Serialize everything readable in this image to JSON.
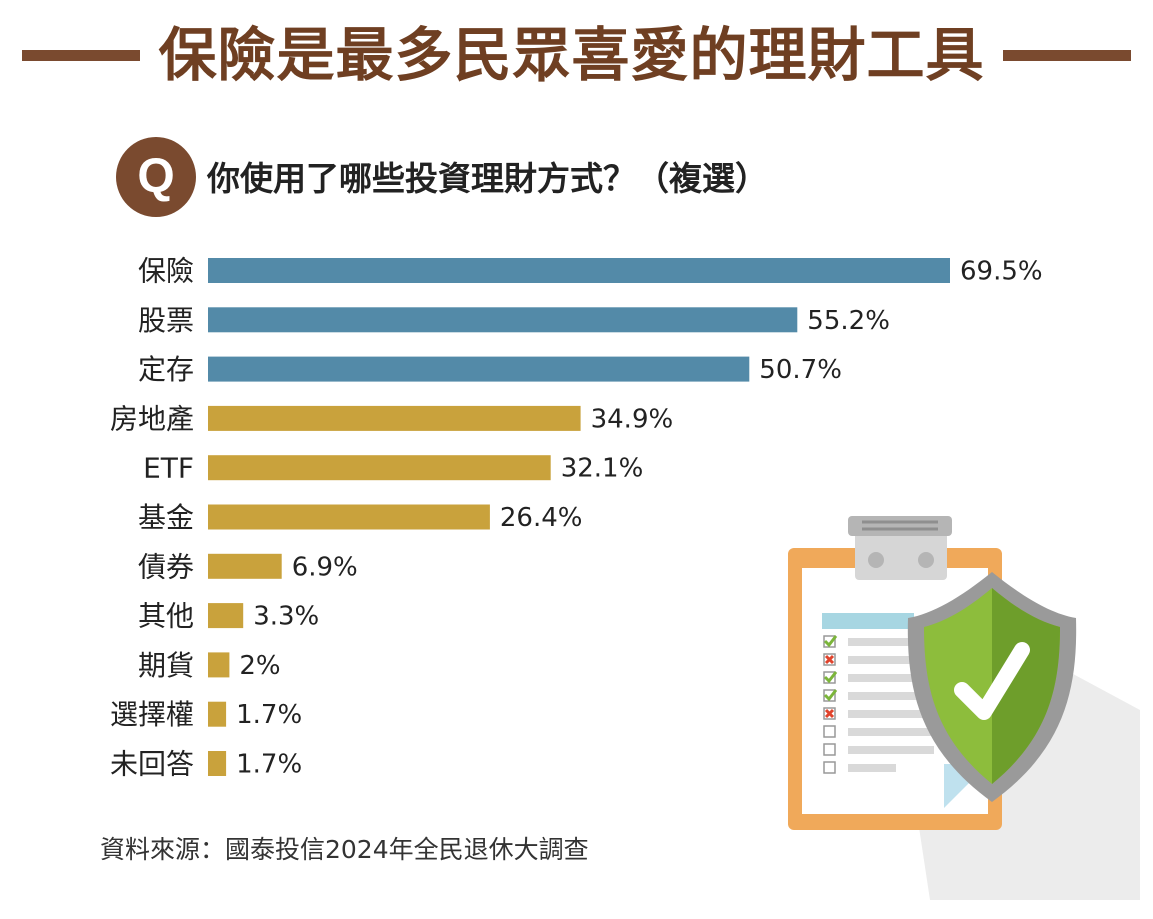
{
  "title": "保險是最多民眾喜愛的理財工具",
  "question_badge": "Q",
  "question": "你使用了哪些投資理財方式？（複選）",
  "source": "資料來源：國泰投信2024年全民退休大調查",
  "colors": {
    "brand_brown": "#7a4a2f",
    "bar_top": "#538aa8",
    "bar_other": "#c9a23c",
    "shield_green": "#8dbd3c"
  },
  "chart_data": {
    "type": "bar",
    "orientation": "horizontal",
    "categories": [
      "保險",
      "股票",
      "定存",
      "房地產",
      "ETF",
      "基金",
      "債券",
      "其他",
      "期貨",
      "選擇權",
      "未回答"
    ],
    "values": [
      69.5,
      55.2,
      50.7,
      34.9,
      32.1,
      26.4,
      6.9,
      3.3,
      2,
      1.7,
      1.7
    ],
    "value_labels": [
      "69.5%",
      "55.2%",
      "50.7%",
      "34.9%",
      "32.1%",
      "26.4%",
      "6.9%",
      "3.3%",
      "2%",
      "1.7%",
      "1.7%"
    ],
    "highlighted_count": 3,
    "unit": "%",
    "xlim": [
      0,
      69.5
    ],
    "grid": false,
    "legend": false
  }
}
